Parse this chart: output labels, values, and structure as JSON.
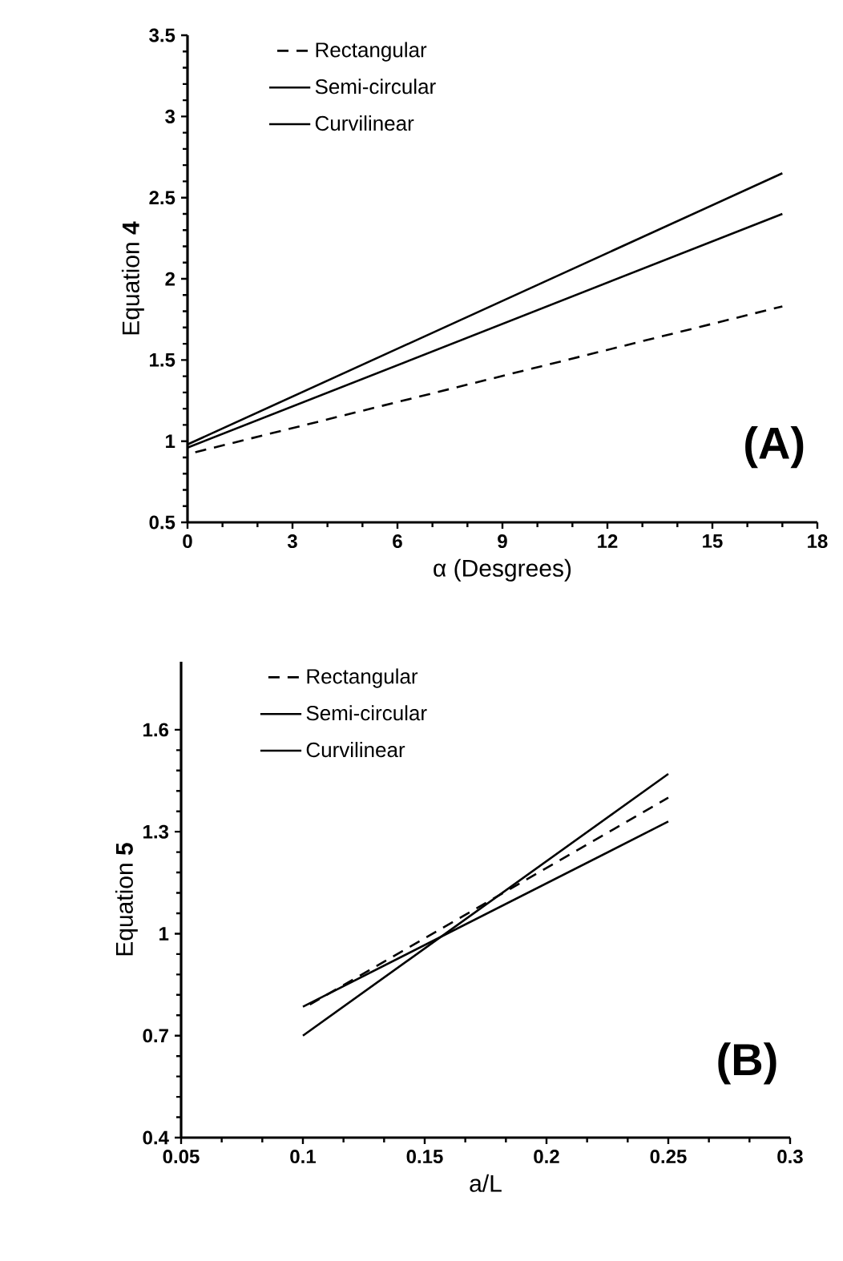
{
  "chart_data": [
    {
      "type": "line",
      "xlabel": "α (Desgrees)",
      "ylabel": "Equation **4**",
      "xlim": [
        0,
        18
      ],
      "ylim": [
        0.5,
        3.5
      ],
      "xticks": [
        0,
        3,
        6,
        9,
        12,
        15,
        18
      ],
      "yticks": [
        0.5,
        1,
        1.5,
        2,
        2.5,
        3,
        3.5
      ],
      "legend": "top left",
      "annotations": [
        "(A)"
      ],
      "series": [
        {
          "name": "Rectangular",
          "color": "#000000",
          "line_style": "dashed",
          "x": [
            0,
            17
          ],
          "values": [
            0.92,
            1.83
          ]
        },
        {
          "name": "Semi-circular",
          "color": "#000000",
          "line_style": "solid",
          "x": [
            0,
            17
          ],
          "values": [
            0.98,
            2.65
          ]
        },
        {
          "name": "Curvilinear",
          "color": "#000000",
          "line_style": "solid",
          "x": [
            0,
            17
          ],
          "values": [
            0.96,
            2.4
          ]
        }
      ]
    },
    {
      "type": "line",
      "xlabel": "a/L",
      "ylabel": "Equation **5**",
      "xlim": [
        0.05,
        0.3
      ],
      "ylim": [
        0.4,
        1.8
      ],
      "xticks": [
        0.05,
        0.1,
        0.15,
        0.2,
        0.25,
        0.3
      ],
      "yticks": [
        0.4,
        0.7,
        1,
        1.3,
        1.6
      ],
      "legend": "top left",
      "annotations": [
        "(B)"
      ],
      "series": [
        {
          "name": "Rectangular",
          "color": "#000000",
          "line_style": "dashed",
          "x": [
            0.1,
            0.25
          ],
          "values": [
            0.78,
            1.4
          ]
        },
        {
          "name": "Semi-circular",
          "color": "#000000",
          "line_style": "solid",
          "x": [
            0.1,
            0.25
          ],
          "values": [
            0.7,
            1.47
          ]
        },
        {
          "name": "Curvilinear",
          "color": "#000000",
          "line_style": "solid",
          "x": [
            0.1,
            0.25
          ],
          "values": [
            0.785,
            1.33
          ]
        }
      ]
    }
  ]
}
